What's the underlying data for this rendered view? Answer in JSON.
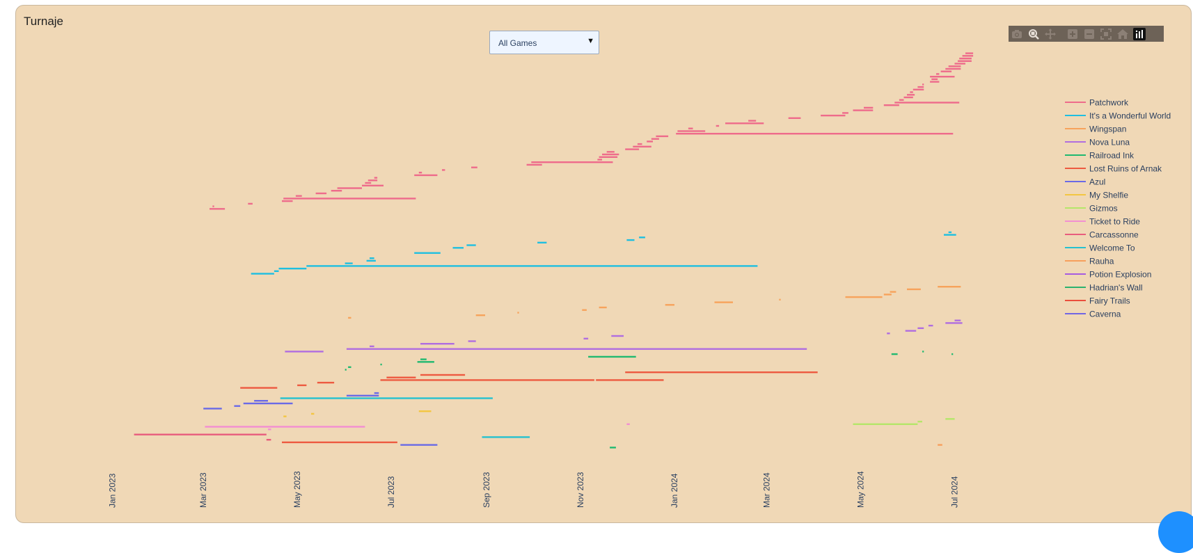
{
  "card": {
    "title": "Turnaje"
  },
  "filter": {
    "selected": "All Games",
    "arrow": "▼"
  },
  "modebar": {
    "icons": [
      "camera-icon",
      "zoom-icon",
      "pan-icon",
      "zoom-in-icon",
      "zoom-out-icon",
      "autoscale-icon",
      "reset-axes-icon",
      "plotly-logo-icon"
    ]
  },
  "colors": {
    "panel": "#f0d8b6",
    "toolbar": "#6d6257",
    "fab": "#1e90ff"
  },
  "chart_data": {
    "type": "timeline",
    "x_axis": {
      "type": "date",
      "range": [
        "2022-12-10",
        "2024-08-10"
      ],
      "tick_labels": [
        "Jan 2023",
        "Mar 2023",
        "May 2023",
        "Jul 2023",
        "Sep 2023",
        "Nov 2023",
        "Jan 2024",
        "Mar 2024",
        "May 2024",
        "Jul 2024"
      ],
      "tick_dates": [
        "2023-01-01",
        "2023-03-01",
        "2023-05-01",
        "2023-07-01",
        "2023-09-01",
        "2023-11-01",
        "2024-01-01",
        "2024-03-01",
        "2024-05-01",
        "2024-07-01"
      ]
    },
    "y_axis": {
      "visible": false,
      "range": [
        0,
        140
      ]
    },
    "legend": {
      "position": "right"
    },
    "series": [
      {
        "name": "Patchwork",
        "color": "#ee6b8b",
        "bars": [
          [
            "2023-03-05",
            "2023-03-15",
            97
          ],
          [
            "2023-03-07",
            "2023-03-08",
            98
          ],
          [
            "2023-03-30",
            "2023-04-02",
            99
          ],
          [
            "2023-04-21",
            "2023-04-28",
            100
          ],
          [
            "2023-04-22",
            "2023-07-17",
            101
          ],
          [
            "2023-04-30",
            "2023-05-04",
            102
          ],
          [
            "2023-05-13",
            "2023-05-20",
            103
          ],
          [
            "2023-05-23",
            "2023-05-30",
            104
          ],
          [
            "2023-05-27",
            "2023-06-12",
            105
          ],
          [
            "2023-06-12",
            "2023-06-26",
            106
          ],
          [
            "2023-06-14",
            "2023-06-18",
            107
          ],
          [
            "2023-06-16",
            "2023-06-22",
            108
          ],
          [
            "2023-06-20",
            "2023-06-22",
            109
          ],
          [
            "2023-07-16",
            "2023-07-31",
            110
          ],
          [
            "2023-07-19",
            "2023-07-21",
            111
          ],
          [
            "2023-08-03",
            "2023-08-05",
            112
          ],
          [
            "2023-08-22",
            "2023-08-26",
            113
          ],
          [
            "2023-09-27",
            "2023-10-07",
            114
          ],
          [
            "2023-09-30",
            "2023-11-22",
            115
          ],
          [
            "2023-11-12",
            "2023-11-15",
            116
          ],
          [
            "2023-11-13",
            "2023-11-25",
            117
          ],
          [
            "2023-11-15",
            "2023-11-26",
            118
          ],
          [
            "2023-11-18",
            "2023-11-23",
            119
          ],
          [
            "2023-11-30",
            "2023-12-09",
            120
          ],
          [
            "2023-12-05",
            "2023-12-17",
            121
          ],
          [
            "2023-12-08",
            "2023-12-11",
            122
          ],
          [
            "2023-12-14",
            "2023-12-18",
            123
          ],
          [
            "2023-12-17",
            "2023-12-22",
            124
          ],
          [
            "2023-12-20",
            "2023-12-28",
            125
          ],
          [
            "2024-01-02",
            "2024-06-30",
            126
          ],
          [
            "2024-01-03",
            "2024-01-21",
            127
          ],
          [
            "2024-01-10",
            "2024-01-13",
            128
          ],
          [
            "2024-01-28",
            "2024-01-30",
            129
          ],
          [
            "2024-02-03",
            "2024-02-28",
            130
          ],
          [
            "2024-02-18",
            "2024-02-23",
            131
          ],
          [
            "2024-03-15",
            "2024-03-23",
            132
          ],
          [
            "2024-04-05",
            "2024-04-21",
            133
          ],
          [
            "2024-04-19",
            "2024-04-23",
            134
          ],
          [
            "2024-04-26",
            "2024-05-09",
            135
          ],
          [
            "2024-05-03",
            "2024-05-09",
            136
          ],
          [
            "2024-05-16",
            "2024-05-26",
            137
          ],
          [
            "2024-05-23",
            "2024-07-04",
            138
          ],
          [
            "2024-05-26",
            "2024-05-29",
            139
          ],
          [
            "2024-05-29",
            "2024-06-04",
            140
          ],
          [
            "2024-05-31",
            "2024-06-05",
            141
          ],
          [
            "2024-06-02",
            "2024-06-04",
            142
          ],
          [
            "2024-06-04",
            "2024-06-11",
            143
          ],
          [
            "2024-06-07",
            "2024-06-11",
            144
          ],
          [
            "2024-06-10",
            "2024-06-11",
            145
          ],
          [
            "2024-06-15",
            "2024-06-21",
            146
          ],
          [
            "2024-06-16",
            "2024-06-20",
            147
          ],
          [
            "2024-06-15",
            "2024-07-01",
            148
          ],
          [
            "2024-06-19",
            "2024-06-21",
            149
          ],
          [
            "2024-06-22",
            "2024-06-29",
            150
          ],
          [
            "2024-06-25",
            "2024-07-05",
            151
          ],
          [
            "2024-06-27",
            "2024-07-05",
            152
          ],
          [
            "2024-07-01",
            "2024-07-08",
            153
          ],
          [
            "2024-07-03",
            "2024-07-12",
            154
          ],
          [
            "2024-07-04",
            "2024-07-12",
            155
          ],
          [
            "2024-07-06",
            "2024-07-13",
            156
          ],
          [
            "2024-07-08",
            "2024-07-13",
            157
          ]
        ]
      },
      {
        "name": "It's a Wonderful World",
        "color": "#1fbfe0",
        "bars": [
          [
            "2023-04-01",
            "2023-04-16",
            72
          ],
          [
            "2023-04-16",
            "2023-04-19",
            73
          ],
          [
            "2023-04-19",
            "2023-05-07",
            74
          ],
          [
            "2023-05-07",
            "2024-02-24",
            75
          ],
          [
            "2023-06-01",
            "2023-06-06",
            76
          ],
          [
            "2023-06-15",
            "2023-06-21",
            77
          ],
          [
            "2023-06-17",
            "2023-06-20",
            78
          ],
          [
            "2023-07-16",
            "2023-08-02",
            80
          ],
          [
            "2023-08-10",
            "2023-08-17",
            82
          ],
          [
            "2023-08-19",
            "2023-08-25",
            83
          ],
          [
            "2023-10-04",
            "2023-10-10",
            84
          ],
          [
            "2023-12-01",
            "2023-12-06",
            85
          ],
          [
            "2023-12-09",
            "2023-12-13",
            86
          ],
          [
            "2024-06-24",
            "2024-07-02",
            87
          ],
          [
            "2024-06-27",
            "2024-06-29",
            88
          ]
        ]
      },
      {
        "name": "Wingspan",
        "color": "#f7a35c",
        "bars": [
          [
            "2023-06-03",
            "2023-06-05",
            55
          ],
          [
            "2023-08-25",
            "2023-08-31",
            56
          ],
          [
            "2023-09-21",
            "2023-09-22",
            57
          ],
          [
            "2023-11-02",
            "2023-11-05",
            58
          ],
          [
            "2023-11-13",
            "2023-11-18",
            59
          ],
          [
            "2023-12-26",
            "2024-01-01",
            60
          ],
          [
            "2024-01-27",
            "2024-02-08",
            61
          ],
          [
            "2024-03-09",
            "2024-03-10",
            62
          ],
          [
            "2024-04-21",
            "2024-05-15",
            63
          ],
          [
            "2024-05-16",
            "2024-05-21",
            64
          ],
          [
            "2024-05-20",
            "2024-05-24",
            65
          ],
          [
            "2024-05-31",
            "2024-06-09",
            66
          ],
          [
            "2024-06-20",
            "2024-07-05",
            67
          ]
        ]
      },
      {
        "name": "Nova Luna",
        "color": "#b06de0",
        "bars": [
          [
            "2023-04-23",
            "2023-05-18",
            42
          ],
          [
            "2023-06-02",
            "2024-03-27",
            43
          ],
          [
            "2023-06-17",
            "2023-06-20",
            44
          ],
          [
            "2023-07-20",
            "2023-08-11",
            45
          ],
          [
            "2023-08-20",
            "2023-08-25",
            46
          ],
          [
            "2023-11-03",
            "2023-11-06",
            47
          ],
          [
            "2023-11-21",
            "2023-11-29",
            48
          ],
          [
            "2024-05-18",
            "2024-05-20",
            49
          ],
          [
            "2024-05-30",
            "2024-06-06",
            50
          ],
          [
            "2024-06-07",
            "2024-06-11",
            51
          ],
          [
            "2024-06-14",
            "2024-06-17",
            52
          ],
          [
            "2024-06-25",
            "2024-07-06",
            53
          ],
          [
            "2024-07-01",
            "2024-07-05",
            54
          ]
        ]
      },
      {
        "name": "Railroad Ink",
        "color": "#20b970",
        "bars": [
          [
            "2023-06-01",
            "2023-06-02",
            35
          ],
          [
            "2023-06-03",
            "2023-06-05",
            36
          ],
          [
            "2023-06-24",
            "2023-06-25",
            37
          ],
          [
            "2023-07-18",
            "2023-07-29",
            38
          ],
          [
            "2023-07-20",
            "2023-07-24",
            39
          ],
          [
            "2023-11-06",
            "2023-12-07",
            40
          ],
          [
            "2024-05-21",
            "2024-05-25",
            41
          ],
          [
            "2024-06-10",
            "2024-06-11",
            42
          ],
          [
            "2024-06-29",
            "2024-06-30",
            41
          ],
          [
            "2023-11-20",
            "2023-11-24",
            5
          ]
        ]
      },
      {
        "name": "Lost Ruins of Arnak",
        "color": "#ed5a40",
        "bars": [
          [
            "2023-03-25",
            "2023-04-18",
            28
          ],
          [
            "2023-05-01",
            "2023-05-07",
            29
          ],
          [
            "2023-05-14",
            "2023-05-25",
            30
          ],
          [
            "2023-06-24",
            "2023-11-10",
            31
          ],
          [
            "2023-06-28",
            "2023-07-17",
            32
          ],
          [
            "2023-07-20",
            "2023-08-18",
            33
          ],
          [
            "2023-11-11",
            "2023-12-25",
            31
          ],
          [
            "2023-11-30",
            "2024-04-03",
            34
          ],
          [
            "2023-04-21",
            "2023-07-05",
            7
          ]
        ]
      },
      {
        "name": "Azul",
        "color": "#6a6ae6",
        "bars": [
          [
            "2023-03-01",
            "2023-03-13",
            20
          ],
          [
            "2023-03-21",
            "2023-03-25",
            21
          ],
          [
            "2023-03-27",
            "2023-04-28",
            22
          ],
          [
            "2023-04-03",
            "2023-04-12",
            23
          ],
          [
            "2023-06-02",
            "2023-06-23",
            25
          ],
          [
            "2023-06-20",
            "2023-06-23",
            26
          ],
          [
            "2023-07-07",
            "2023-07-31",
            6
          ]
        ]
      },
      {
        "name": "My Shelfie",
        "color": "#f3c642",
        "bars": [
          [
            "2023-04-22",
            "2023-04-24",
            17
          ],
          [
            "2023-05-10",
            "2023-05-12",
            18
          ],
          [
            "2023-07-19",
            "2023-07-27",
            19
          ]
        ]
      },
      {
        "name": "Gizmos",
        "color": "#b5e66a",
        "bars": [
          [
            "2024-04-26",
            "2024-06-07",
            14
          ],
          [
            "2024-06-07",
            "2024-06-10",
            15
          ],
          [
            "2024-06-25",
            "2024-07-01",
            16
          ]
        ]
      },
      {
        "name": "Ticket to Ride",
        "color": "#f28fd2",
        "bars": [
          [
            "2023-03-02",
            "2023-06-14",
            13
          ],
          [
            "2023-04-12",
            "2023-04-14",
            12
          ],
          [
            "2023-12-01",
            "2023-12-03",
            14
          ]
        ]
      },
      {
        "name": "Carcassonne",
        "color": "#e85d7d",
        "bars": [
          [
            "2023-01-15",
            "2023-04-11",
            10
          ],
          [
            "2023-04-11",
            "2023-04-14",
            8
          ]
        ]
      },
      {
        "name": "Welcome To",
        "color": "#26c1cf",
        "bars": [
          [
            "2023-04-20",
            "2023-09-05",
            24
          ],
          [
            "2023-08-29",
            "2023-09-29",
            9
          ]
        ]
      },
      {
        "name": "Rauha",
        "color": "#f79f5c",
        "bars": [
          [
            "2024-06-20",
            "2024-06-23",
            6
          ]
        ]
      },
      {
        "name": "Potion Explosion",
        "color": "#a65be0",
        "bars": []
      },
      {
        "name": "Hadrian's Wall",
        "color": "#2bb26f",
        "bars": []
      },
      {
        "name": "Fairy Trails",
        "color": "#ea4e3c",
        "bars": []
      },
      {
        "name": "Caverna",
        "color": "#7266e3",
        "bars": []
      }
    ]
  }
}
